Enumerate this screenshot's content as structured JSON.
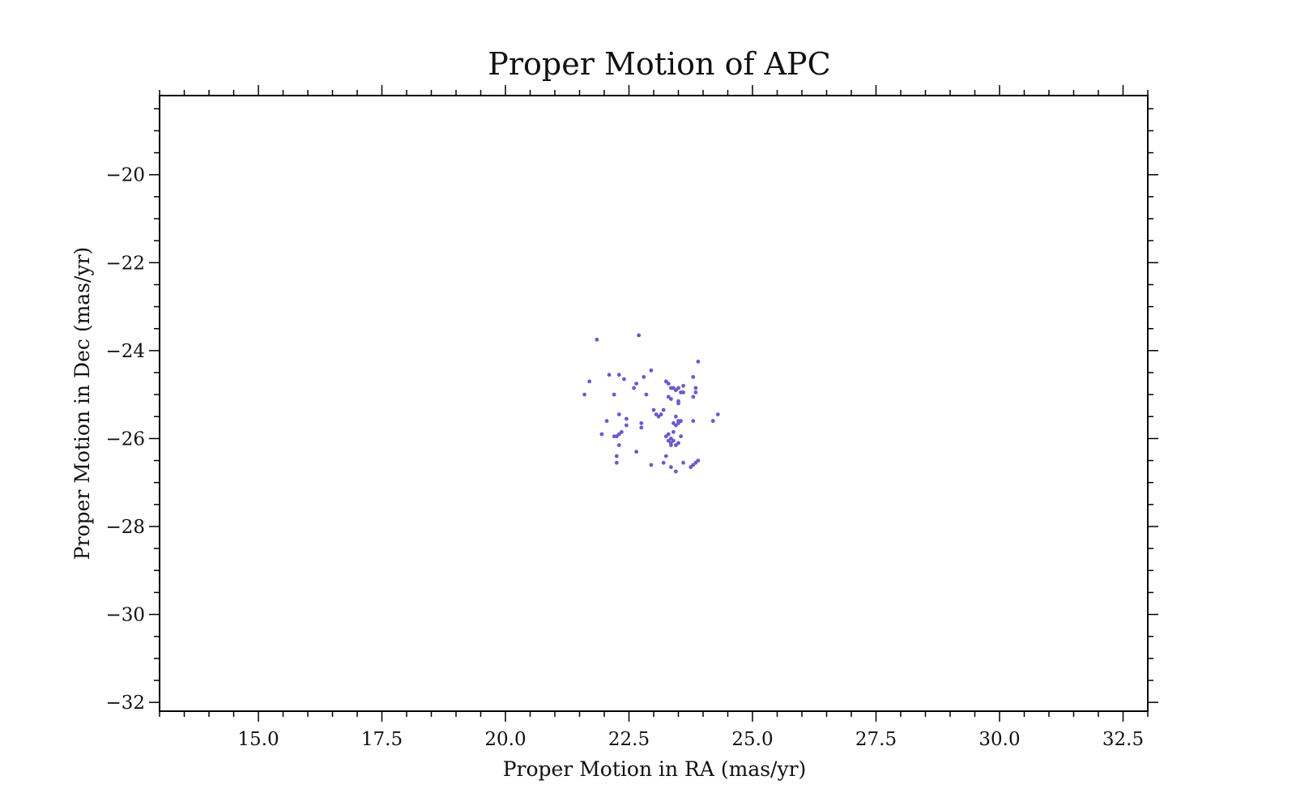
{
  "chart_data": {
    "type": "scatter",
    "title": "Proper Motion of APC",
    "xlabel": "Proper Motion in RA (mas/yr)",
    "ylabel": "Proper Motion in Dec (mas/yr)",
    "xlim": [
      13.0,
      33.0
    ],
    "ylim": [
      -32.2,
      -18.2
    ],
    "x_ticks": [
      15.0,
      17.5,
      20.0,
      22.5,
      25.0,
      27.5,
      30.0,
      32.5
    ],
    "x_tick_labels": [
      "15.0",
      "17.5",
      "20.0",
      "22.5",
      "25.0",
      "27.5",
      "30.0",
      "32.5"
    ],
    "y_ticks": [
      -20,
      -22,
      -24,
      -26,
      -28,
      -30,
      -32
    ],
    "y_tick_labels": [
      "−20",
      "−22",
      "−24",
      "−26",
      "−28",
      "−30",
      "−32"
    ],
    "grid": false,
    "marker_color": "#6a5acd",
    "series": [
      {
        "x": [
          21.85,
          22.7,
          23.9,
          21.7,
          21.6,
          22.1,
          22.3,
          22.4,
          22.8,
          22.95,
          22.65,
          22.6,
          22.2,
          22.85,
          23.25,
          23.3,
          23.35,
          23.4,
          23.5,
          23.6,
          23.45,
          23.55,
          23.8,
          23.85,
          23.85,
          23.8,
          23.35,
          23.3,
          23.5,
          23.6,
          23.5,
          22.05,
          22.3,
          22.45,
          22.45,
          22.25,
          22.3,
          22.2,
          22.35,
          22.3,
          22.25,
          22.25,
          22.65,
          22.75,
          22.75,
          21.95,
          23.0,
          23.2,
          23.15,
          23.05,
          23.1,
          23.45,
          23.5,
          23.4,
          23.5,
          23.45,
          23.4,
          23.3,
          23.35,
          23.4,
          23.35,
          23.5,
          23.55,
          23.25,
          23.3,
          23.25,
          23.35,
          23.45,
          23.55,
          22.95,
          23.2,
          23.35,
          23.45,
          23.6,
          23.75,
          23.85,
          23.9,
          23.8,
          23.8,
          24.2,
          24.3
        ],
        "y": [
          -23.75,
          -23.65,
          -24.25,
          -24.7,
          -25.0,
          -24.55,
          -24.55,
          -24.65,
          -24.6,
          -24.45,
          -24.75,
          -24.85,
          -25.0,
          -25.0,
          -24.7,
          -24.75,
          -24.85,
          -24.85,
          -24.85,
          -24.8,
          -24.9,
          -24.95,
          -24.6,
          -24.85,
          -24.95,
          -25.05,
          -25.1,
          -25.05,
          -25.15,
          -24.95,
          -25.2,
          -25.6,
          -25.45,
          -25.55,
          -25.7,
          -25.95,
          -25.9,
          -25.95,
          -25.85,
          -26.15,
          -26.4,
          -26.55,
          -26.3,
          -25.65,
          -25.75,
          -25.9,
          -25.35,
          -25.35,
          -25.45,
          -25.45,
          -25.5,
          -25.5,
          -25.6,
          -25.65,
          -25.65,
          -25.7,
          -25.85,
          -25.9,
          -26.0,
          -26.05,
          -26.1,
          -26.1,
          -25.95,
          -25.95,
          -26.05,
          -26.4,
          -26.15,
          -26.15,
          -25.6,
          -26.6,
          -26.55,
          -26.65,
          -26.75,
          -26.55,
          -26.65,
          -26.55,
          -26.5,
          -26.6,
          -25.6,
          -25.6,
          -25.45
        ]
      }
    ]
  }
}
